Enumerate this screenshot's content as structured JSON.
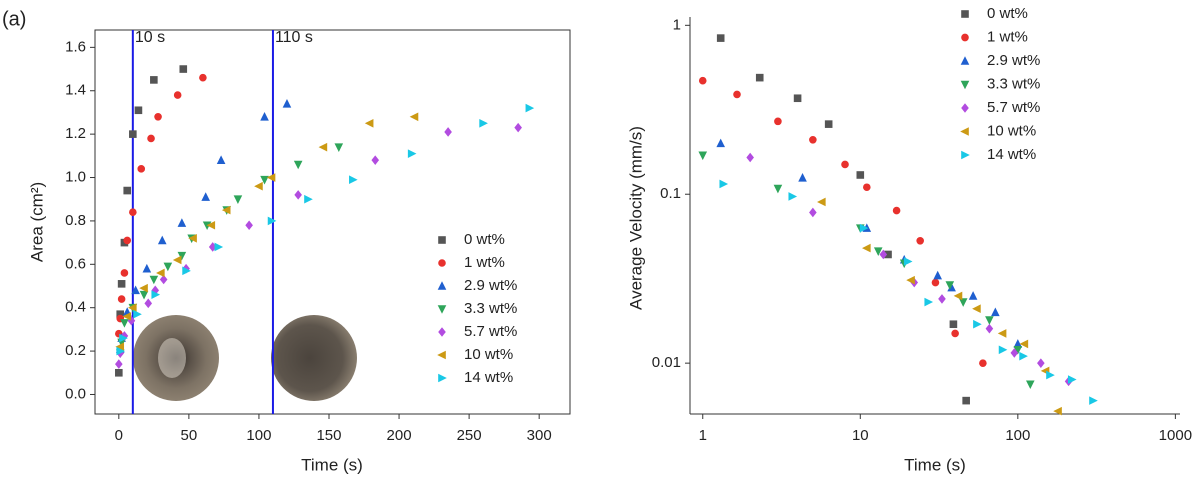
{
  "chart_data": [
    {
      "type": "scatter",
      "panel_label": "(a)",
      "x_label": "Time (s)",
      "y_label": "Area (cm²)",
      "xlim": [
        -17,
        322
      ],
      "ylim": [
        -0.09,
        1.68
      ],
      "xticks": [
        0,
        50,
        100,
        150,
        200,
        250,
        300
      ],
      "yticks": [
        {
          "value": 0,
          "label": "0.0"
        },
        0.2,
        0.4,
        0.6,
        0.8,
        {
          "value": 1,
          "label": "1.0"
        },
        1.2,
        1.4,
        1.6
      ],
      "legend": "lower right",
      "frame": true,
      "vlines": [
        {
          "x": 10,
          "label": "10 s",
          "color": "#1a1ae6"
        },
        {
          "x": 110,
          "label": "110 s",
          "color": "#1a1ae6"
        }
      ],
      "series": [
        {
          "name": "0 wt%",
          "color": "#555555",
          "marker": "square",
          "x": [
            0,
            1,
            2,
            4,
            6,
            10,
            14,
            25,
            46
          ],
          "values": [
            0.1,
            0.37,
            0.51,
            0.7,
            0.94,
            1.2,
            1.31,
            1.45,
            1.5
          ]
        },
        {
          "name": "1 wt%",
          "color": "#e8312d",
          "marker": "circle",
          "x": [
            0,
            1,
            2,
            4,
            6,
            10,
            16,
            23,
            28,
            42,
            60
          ],
          "values": [
            0.28,
            0.35,
            0.44,
            0.56,
            0.71,
            0.84,
            1.04,
            1.18,
            1.28,
            1.38,
            1.46
          ]
        },
        {
          "name": "2.9 wt%",
          "color": "#1f5fcf",
          "marker": "up",
          "x": [
            1,
            2,
            6,
            12,
            20,
            31,
            45,
            62,
            73,
            104,
            120
          ],
          "values": [
            0.21,
            0.26,
            0.38,
            0.48,
            0.58,
            0.71,
            0.79,
            0.91,
            1.08,
            1.28,
            1.34
          ]
        },
        {
          "name": "3.3 wt%",
          "color": "#2ea55a",
          "marker": "down",
          "x": [
            1,
            2,
            4,
            10,
            18,
            25,
            35,
            45,
            52,
            63,
            77,
            85,
            104,
            128,
            157
          ],
          "values": [
            0.19,
            0.24,
            0.33,
            0.4,
            0.46,
            0.53,
            0.59,
            0.64,
            0.72,
            0.78,
            0.85,
            0.9,
            0.99,
            1.06,
            1.14
          ]
        },
        {
          "name": "5.7 wt%",
          "color": "#b24ce0",
          "marker": "diamond",
          "x": [
            0,
            1,
            4,
            9,
            21,
            26,
            32,
            48,
            67,
            93,
            128,
            183,
            235,
            285
          ],
          "values": [
            0.14,
            0.19,
            0.27,
            0.34,
            0.42,
            0.48,
            0.53,
            0.58,
            0.68,
            0.78,
            0.92,
            1.08,
            1.21,
            1.23
          ]
        },
        {
          "name": "10 wt%",
          "color": "#cc9a14",
          "marker": "left",
          "x": [
            1,
            6,
            10,
            18,
            30,
            42,
            53,
            66,
            77,
            100,
            109,
            146,
            179,
            211
          ],
          "values": [
            0.22,
            0.36,
            0.4,
            0.49,
            0.56,
            0.62,
            0.72,
            0.78,
            0.85,
            0.96,
            1.0,
            1.14,
            1.25,
            1.28
          ]
        },
        {
          "name": "14 wt%",
          "color": "#19c8e6",
          "marker": "right",
          "x": [
            1,
            3,
            13,
            26,
            48,
            71,
            109,
            135,
            167,
            209,
            260,
            293
          ],
          "values": [
            0.2,
            0.26,
            0.37,
            0.46,
            0.57,
            0.68,
            0.8,
            0.9,
            0.99,
            1.11,
            1.25,
            1.32
          ]
        }
      ]
    },
    {
      "type": "scatter",
      "x_label": "Time (s)",
      "y_label": "Average Velocity (mm/s)",
      "xscale": "log",
      "yscale": "log",
      "xlim": [
        0.83,
        1070
      ],
      "ylim": [
        0.005,
        1.12
      ],
      "xticks": [
        1,
        10,
        100,
        1000
      ],
      "yticks": [
        0.01,
        0.1,
        1
      ],
      "legend": "upper right",
      "frame": false,
      "series": [
        {
          "name": "0 wt%",
          "color": "#555555",
          "marker": "square",
          "x": [
            1.3,
            2.3,
            4,
            6.3,
            10,
            15,
            39,
            47
          ],
          "values": [
            0.84,
            0.49,
            0.37,
            0.26,
            0.13,
            0.044,
            0.017,
            0.006
          ]
        },
        {
          "name": "1 wt%",
          "color": "#e8312d",
          "marker": "circle",
          "x": [
            1,
            1.65,
            3,
            5,
            8,
            11,
            17,
            24,
            30,
            40,
            60
          ],
          "values": [
            0.47,
            0.39,
            0.27,
            0.21,
            0.15,
            0.11,
            0.08,
            0.053,
            0.03,
            0.015,
            0.01
          ]
        },
        {
          "name": "2.9 wt%",
          "color": "#1f5fcf",
          "marker": "up",
          "x": [
            1.3,
            4.3,
            11,
            19,
            31,
            38,
            52,
            72,
            100
          ],
          "values": [
            0.2,
            0.125,
            0.063,
            0.041,
            0.033,
            0.028,
            0.025,
            0.02,
            0.013
          ]
        },
        {
          "name": "3.3 wt%",
          "color": "#2ea55a",
          "marker": "down",
          "x": [
            1,
            3,
            10,
            13,
            19,
            37,
            45,
            66,
            100,
            120
          ],
          "values": [
            0.17,
            0.108,
            0.063,
            0.046,
            0.039,
            0.029,
            0.023,
            0.018,
            0.012,
            0.0075
          ]
        },
        {
          "name": "5.7 wt%",
          "color": "#b24ce0",
          "marker": "diamond",
          "x": [
            2,
            5,
            14,
            22,
            33,
            66,
            95,
            140,
            210
          ],
          "values": [
            0.165,
            0.078,
            0.044,
            0.03,
            0.024,
            0.016,
            0.0115,
            0.01,
            0.0078
          ]
        },
        {
          "name": "10 wt%",
          "color": "#cc9a14",
          "marker": "left",
          "x": [
            5.7,
            11,
            21,
            42,
            55,
            80,
            110,
            150,
            180
          ],
          "values": [
            0.09,
            0.048,
            0.031,
            0.025,
            0.021,
            0.015,
            0.013,
            0.009,
            0.0052
          ]
        },
        {
          "name": "14 wt%",
          "color": "#19c8e6",
          "marker": "right",
          "x": [
            1.35,
            3.7,
            10.5,
            20,
            27,
            55,
            80,
            108,
            160,
            220,
            300
          ],
          "values": [
            0.115,
            0.097,
            0.063,
            0.04,
            0.023,
            0.017,
            0.012,
            0.011,
            0.0085,
            0.008,
            0.006
          ]
        }
      ]
    }
  ]
}
